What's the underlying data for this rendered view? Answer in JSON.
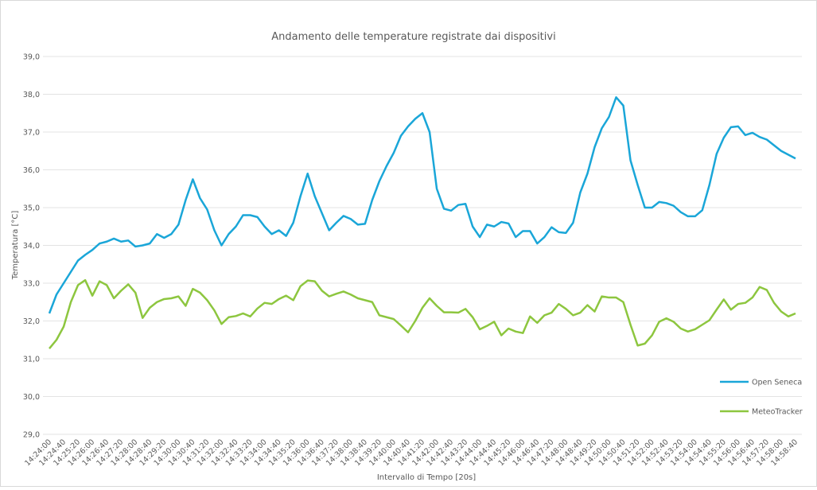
{
  "chart_data": {
    "type": "line",
    "title": "Andamento delle temperature registrate dai dispositivi",
    "x_label": "Intervallo di Tempo [20s]",
    "y_label": "Temperatura [°C]",
    "categories": [
      "14:24:00",
      null,
      "14:24:40",
      null,
      "14:25:20",
      null,
      "14:26:00",
      null,
      "14:26:40",
      null,
      "14:27:20",
      null,
      "14:28:00",
      null,
      "14:28:40",
      null,
      "14:29:20",
      null,
      "14:30:00",
      null,
      "14:30:40",
      null,
      "14:31:20",
      null,
      "14:32:00",
      null,
      "14:32:40",
      null,
      "14:33:20",
      null,
      "14:34:00",
      null,
      "14:34:40",
      null,
      "14:35:20",
      null,
      "14:36:00",
      null,
      "14:36:40",
      null,
      "14:37:20",
      null,
      "14:38:00",
      null,
      "14:38:40",
      null,
      "14:39:20",
      null,
      "14:40:00",
      null,
      "14:40:40",
      null,
      "14:41:20",
      null,
      "14:42:00",
      null,
      "14:42:40",
      null,
      "14:43:20",
      null,
      "14:44:00",
      null,
      "14:44:40",
      null,
      "14:45:20",
      null,
      "14:46:00",
      null,
      "14:46:40",
      null,
      "14:47:20",
      null,
      "14:48:00",
      null,
      "14:48:40",
      null,
      "14:49:20",
      null,
      "14:50:00",
      null,
      "14:50:40",
      null,
      "14:51:20",
      null,
      "14:52:00",
      null,
      "14:52:40",
      null,
      "14:53:20",
      null,
      "14:54:00",
      null,
      "14:54:40",
      null,
      "14:55:20",
      null,
      "14:56:00",
      null,
      "14:56:40",
      null,
      "14:57:20",
      null,
      "14:58:00",
      null,
      "14:58:40"
    ],
    "series": [
      {
        "name": "Open Seneca",
        "color": "#1aa6d8",
        "values": [
          32.2,
          32.7,
          33.0,
          33.3,
          33.6,
          33.75,
          33.88,
          34.05,
          34.1,
          34.18,
          34.1,
          34.13,
          33.97,
          34.0,
          34.05,
          34.3,
          34.2,
          34.3,
          34.55,
          35.2,
          35.75,
          35.25,
          34.95,
          34.4,
          34.0,
          34.3,
          34.5,
          34.8,
          34.8,
          34.75,
          34.5,
          34.3,
          34.4,
          34.25,
          34.6,
          35.3,
          35.9,
          35.3,
          34.85,
          34.4,
          34.6,
          34.78,
          34.7,
          34.55,
          34.57,
          35.2,
          35.7,
          36.1,
          36.45,
          36.9,
          37.15,
          37.35,
          37.5,
          37.0,
          35.5,
          34.97,
          34.92,
          35.07,
          35.1,
          34.5,
          34.22,
          34.55,
          34.5,
          34.62,
          34.58,
          34.22,
          34.38,
          34.38,
          34.05,
          34.22,
          34.48,
          34.35,
          34.33,
          34.6,
          35.4,
          35.9,
          36.6,
          37.1,
          37.4,
          37.92,
          37.7,
          36.25,
          35.6,
          35.0,
          35.0,
          35.15,
          35.12,
          35.05,
          34.88,
          34.77,
          34.77,
          34.93,
          35.6,
          36.42,
          36.85,
          37.13,
          37.15,
          36.92,
          36.98,
          36.87,
          36.8,
          36.65,
          36.5,
          36.4,
          36.3
        ]
      },
      {
        "name": "MeteoTracker",
        "color": "#8dc63f",
        "values": [
          31.27,
          31.5,
          31.85,
          32.5,
          32.95,
          33.08,
          32.67,
          33.05,
          32.95,
          32.6,
          32.8,
          32.97,
          32.75,
          32.08,
          32.35,
          32.5,
          32.58,
          32.6,
          32.65,
          32.4,
          32.85,
          32.75,
          32.55,
          32.28,
          31.92,
          32.1,
          32.13,
          32.2,
          32.12,
          32.33,
          32.48,
          32.45,
          32.58,
          32.67,
          32.55,
          32.92,
          33.07,
          33.05,
          32.8,
          32.65,
          32.72,
          32.78,
          32.7,
          32.6,
          32.55,
          32.5,
          32.15,
          32.1,
          32.05,
          31.88,
          31.7,
          32.0,
          32.35,
          32.6,
          32.4,
          32.23,
          32.23,
          32.22,
          32.32,
          32.1,
          31.78,
          31.87,
          31.98,
          31.62,
          31.8,
          31.72,
          31.68,
          32.12,
          31.95,
          32.15,
          32.22,
          32.45,
          32.32,
          32.15,
          32.22,
          32.42,
          32.25,
          32.65,
          32.62,
          32.62,
          32.5,
          31.9,
          31.35,
          31.4,
          31.62,
          31.98,
          32.07,
          31.98,
          31.8,
          31.72,
          31.78,
          31.9,
          32.02,
          32.3,
          32.57,
          32.3,
          32.45,
          32.48,
          32.62,
          32.9,
          32.82,
          32.48,
          32.25,
          32.12,
          32.2
        ]
      }
    ],
    "ylim": [
      29,
      39
    ],
    "yticks": [
      {
        "value": 29,
        "label": "29,0"
      },
      {
        "value": 30,
        "label": "30,0"
      },
      {
        "value": 31,
        "label": "31,0"
      },
      {
        "value": 32,
        "label": "32,0"
      },
      {
        "value": 33,
        "label": "33,0"
      },
      {
        "value": 34,
        "label": "34,0"
      },
      {
        "value": 35,
        "label": "35,0"
      },
      {
        "value": 36,
        "label": "36,0"
      },
      {
        "value": 37,
        "label": "37,0"
      },
      {
        "value": 38,
        "label": "38,0"
      },
      {
        "value": 39,
        "label": "39,0"
      }
    ],
    "grid": true,
    "legend": "right"
  }
}
